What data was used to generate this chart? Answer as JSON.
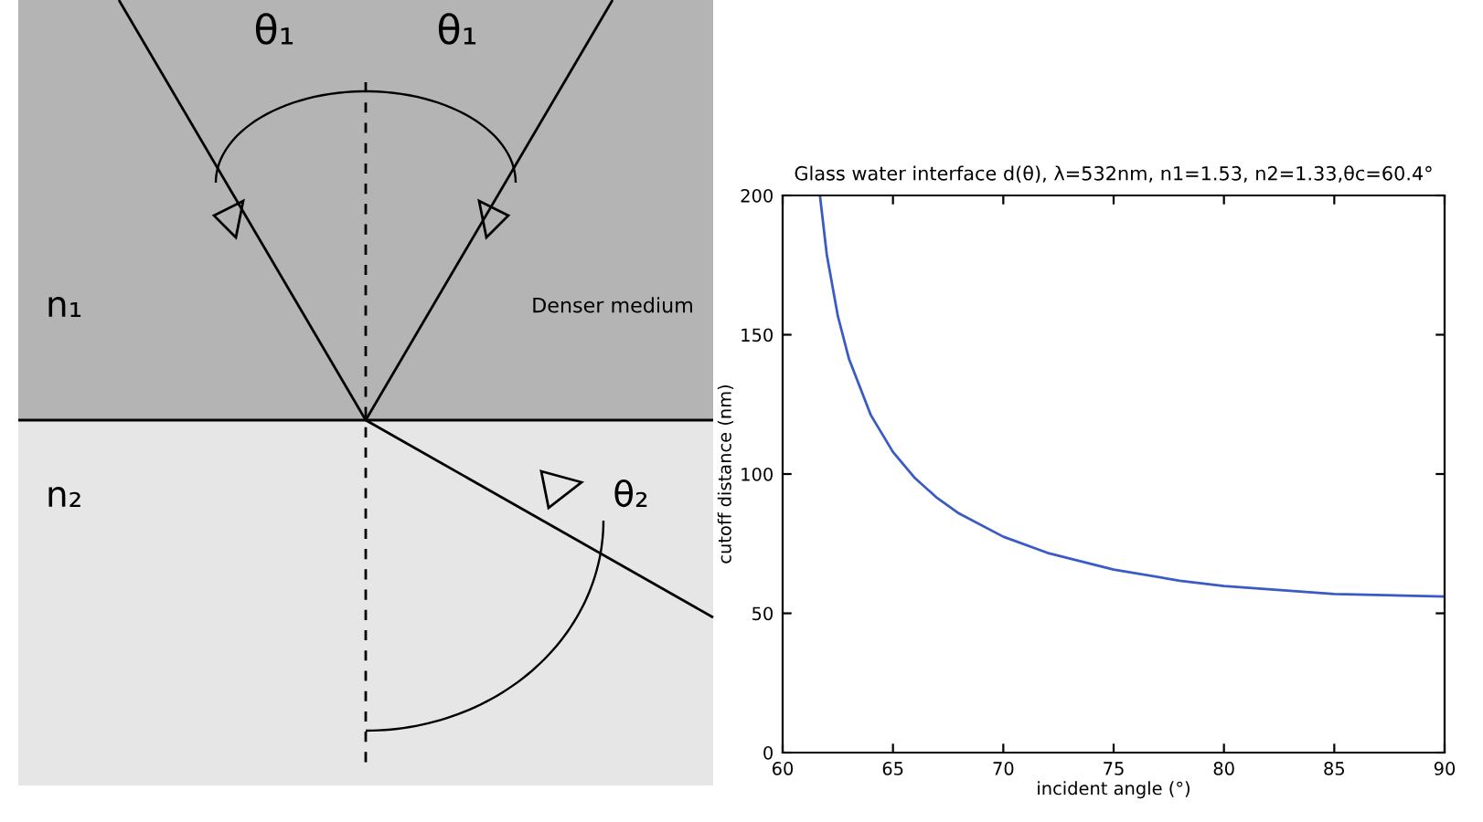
{
  "chart_data": [
    {
      "type": "other",
      "annotations": [
        "θ₁",
        "θ₁",
        "n₁",
        "Denser medium",
        "n₂",
        "θ₂"
      ]
    },
    {
      "type": "line",
      "title": "Glass water interface d(θ), λ=532nm, n1=1.53, n2=1.33,θc=60.4°",
      "xlabel": "incident angle (°)",
      "ylabel": "cutoff distance (nm)",
      "x": [
        61.69,
        62,
        62.5,
        63,
        64,
        65,
        66,
        67,
        68,
        70,
        72,
        75,
        78,
        80,
        85,
        90
      ],
      "series": [
        {
          "color": "#3b5bc4",
          "values": [
            200,
            178.8,
            156.8,
            141.5,
            121.1,
            107.9,
            98.5,
            91.4,
            85.8,
            77.5,
            71.7,
            65.7,
            61.7,
            59.8,
            56.9,
            56.0
          ]
        }
      ],
      "xlim": [
        60,
        90
      ],
      "xticks": [
        60,
        65,
        70,
        75,
        80,
        85,
        90
      ],
      "ylim": [
        0,
        200
      ],
      "yticks": [
        0,
        50,
        100,
        150,
        200
      ],
      "grid": false,
      "legend": false
    }
  ]
}
